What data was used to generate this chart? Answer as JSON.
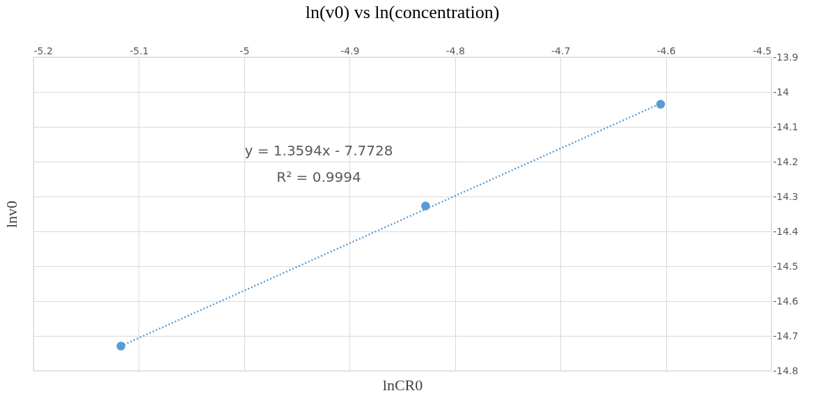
{
  "chart_data": {
    "type": "scatter",
    "title": "ln(v0) vs ln(concentration)",
    "xlabel": "lnCR0",
    "ylabel": "lnv0",
    "x": [
      -5.117,
      -4.828,
      -4.605
    ],
    "series": [
      {
        "color": "#5b9bd5",
        "values": [
          -14.729,
          -14.327,
          -14.035
        ],
        "marker": "circle"
      },
      {
        "type": "line",
        "x": [
          -5.117,
          -4.605
        ],
        "values": [
          -14.729,
          -14.033
        ],
        "color": "#5b9bd5",
        "line_style": "dotted",
        "marker": "none"
      }
    ],
    "xlim": [
      -5.2,
      -4.5
    ],
    "xticks": [
      -5.2,
      -5.1,
      -5,
      -4.9,
      -4.8,
      -4.7,
      -4.6,
      -4.5
    ],
    "ylim": [
      -14.8,
      -13.9
    ],
    "yticks": [
      -14.8,
      -14.7,
      -14.6,
      -14.5,
      -14.4,
      -14.3,
      -14.2,
      -14.1,
      -14,
      -13.9
    ],
    "grid": true,
    "annotations": [
      "y = 1.3594x - 7.7728",
      "R² = 0.9994"
    ]
  }
}
